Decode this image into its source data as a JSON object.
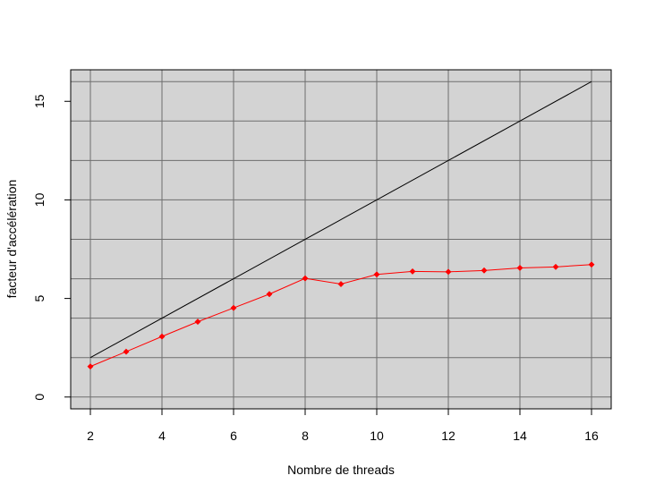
{
  "chart_data": {
    "type": "line",
    "title": "",
    "xlabel": "Nombre de threads",
    "ylabel": "facteur d'accélération",
    "xlim": [
      1.45,
      16.55
    ],
    "ylim": [
      -0.6,
      16.6
    ],
    "x_ticks": [
      2,
      4,
      6,
      8,
      10,
      12,
      14,
      16
    ],
    "y_ticks": [
      0,
      5,
      10,
      15
    ],
    "x_grid": [
      2,
      4,
      6,
      8,
      10,
      12,
      14,
      16
    ],
    "y_grid": [
      0,
      2,
      4,
      6,
      8,
      10,
      12,
      14,
      16
    ],
    "grid": true,
    "background": "#d3d3d3",
    "grid_color": "#6e6e6e",
    "series": [
      {
        "key": "ideal",
        "color": "#000000",
        "marker": "none",
        "x": [
          2,
          16
        ],
        "y": [
          2,
          16
        ]
      },
      {
        "key": "measured",
        "color": "#ff0000",
        "marker": "diamond",
        "x": [
          2,
          3,
          4,
          5,
          6,
          7,
          8,
          9,
          10,
          11,
          12,
          13,
          14,
          15,
          16
        ],
        "y": [
          1.55,
          2.3,
          3.07,
          3.82,
          4.52,
          5.22,
          6.02,
          5.73,
          6.22,
          6.37,
          6.35,
          6.42,
          6.55,
          6.6,
          6.72
        ]
      }
    ]
  }
}
